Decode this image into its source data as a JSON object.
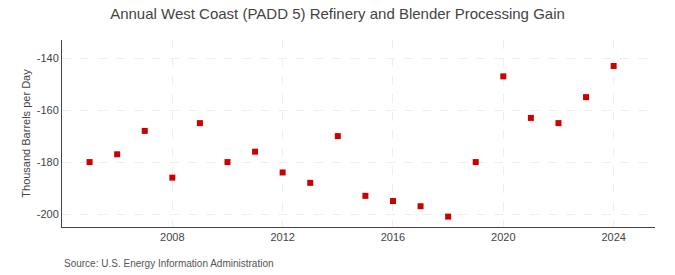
{
  "chart_data": {
    "type": "scatter",
    "title": "Annual West Coast (PADD 5) Refinery and Blender Processing Gain",
    "ylabel": "Thousand Barrels per Day",
    "annotations": [
      "Source: U.S. Energy Information Administration"
    ],
    "x": [
      2005,
      2006,
      2007,
      2008,
      2009,
      2010,
      2011,
      2012,
      2013,
      2014,
      2015,
      2016,
      2017,
      2018,
      2019,
      2020,
      2021,
      2022,
      2023,
      2024
    ],
    "values": [
      -180,
      -177,
      -168,
      -186,
      -165,
      -180,
      -176,
      -184,
      -188,
      -170,
      -193,
      -195,
      -197,
      -201,
      -180,
      -147,
      -163,
      -165,
      -155,
      -143
    ],
    "color": "#cc0000",
    "marker": "square",
    "xlim": [
      2004,
      2025.5
    ],
    "ylim": [
      -205,
      -133
    ],
    "xticks": [
      2008,
      2012,
      2016,
      2020,
      2024
    ],
    "yticks": [
      -200,
      -180,
      -160,
      -140
    ],
    "grid": true
  }
}
